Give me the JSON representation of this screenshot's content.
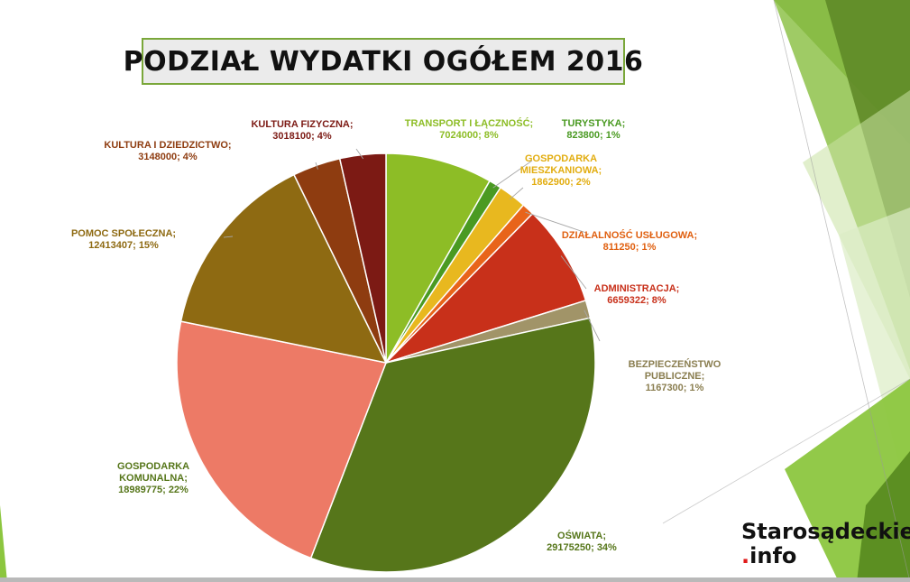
{
  "chart_data": {
    "type": "pie",
    "title": "PODZIAŁ WYDATKI OGÓŁEM 2016",
    "slices": [
      {
        "name": "TRANSPORT I ŁĄCZNOŚĆ",
        "value": 7024000,
        "percent": "8%",
        "color": "#8dbd26"
      },
      {
        "name": "TURYSTYKA",
        "value": 823800,
        "percent": "1%",
        "color": "#4a9a22"
      },
      {
        "name": "GOSPODARKA MIESZKANIOWA",
        "value": 1862900,
        "percent": "2%",
        "color": "#e8b81f"
      },
      {
        "name": "DZIAŁALNOŚĆ USŁUGOWA",
        "value": 811250,
        "percent": "1%",
        "color": "#e8641a"
      },
      {
        "name": "ADMINISTRACJA",
        "value": 6659322,
        "percent": "8%",
        "color": "#c8301a"
      },
      {
        "name": "BEZPIECZEŃSTWO PUBLICZNE",
        "value": 1167300,
        "percent": "1%",
        "color": "#a19468"
      },
      {
        "name": "OŚWIATA",
        "value": 29175250,
        "percent": "34%",
        "color": "#56761a"
      },
      {
        "name": "GOSPODARKA KOMUNALNA",
        "value": 18989775,
        "percent": "22%",
        "color": "#ed7a66"
      },
      {
        "name": "POMOC SPOŁECZNA",
        "value": 12413407,
        "percent": "15%",
        "color": "#8e6a12"
      },
      {
        "name": "KULTURA I DZIEDZICTWO",
        "value": 3148000,
        "percent": "4%",
        "color": "#8e3c10"
      },
      {
        "name": "KULTURA FIZYCZNA",
        "value": 3018100,
        "percent": "4%",
        "color": "#7c1a14"
      }
    ],
    "labels": [
      {
        "lines": [
          "TRANSPORT I ŁĄCZNOŚĆ;",
          "7024000; 8%"
        ],
        "color": "#8dbd26"
      },
      {
        "lines": [
          "TURYSTYKA;",
          "823800; 1%"
        ],
        "color": "#4a9a22"
      },
      {
        "lines": [
          "GOSPODARKA",
          "MIESZKANIOWA;",
          "1862900; 2%"
        ],
        "color": "#e2ad10"
      },
      {
        "lines": [
          "DZIAŁALNOŚĆ USŁUGOWA;",
          "811250; 1%"
        ],
        "color": "#e06010"
      },
      {
        "lines": [
          "ADMINISTRACJA;",
          "6659322; 8%"
        ],
        "color": "#c8301a"
      },
      {
        "lines": [
          "BEZPIECZEŃSTWO",
          "PUBLICZNE;",
          "1167300; 1%"
        ],
        "color": "#8a7e50"
      },
      {
        "lines": [
          "OŚWIATA;",
          "29175250; 34%"
        ],
        "color": "#56761a"
      },
      {
        "lines": [
          "GOSPODARKA",
          "KOMUNALNA;",
          "18989775; 22%"
        ],
        "color": "#56761a"
      },
      {
        "lines": [
          "POMOC SPOŁECZNA;",
          "12413407; 15%"
        ],
        "color": "#8e6a12"
      },
      {
        "lines": [
          "KULTURA I DZIEDZICTWO;",
          "3148000; 4%"
        ],
        "color": "#8e3c10"
      },
      {
        "lines": [
          "KULTURA FIZYCZNA;",
          "3018100; 4%"
        ],
        "color": "#7c1a14"
      }
    ]
  },
  "logo": {
    "line1": "Starosądeckie",
    "dot": ".",
    "line2": "info"
  },
  "colors": {
    "accent_green": "#7aa73a",
    "logo_dot": "#e01a1a"
  }
}
